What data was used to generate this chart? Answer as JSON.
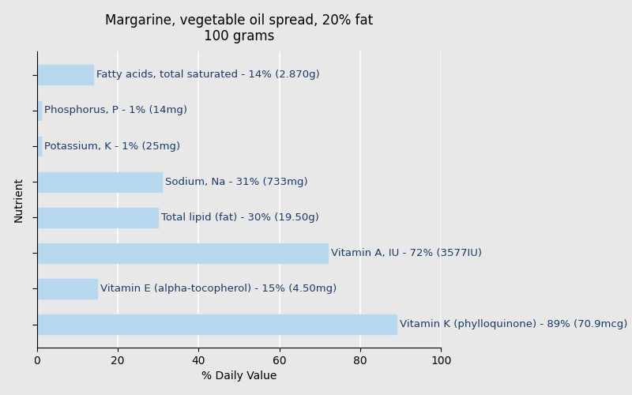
{
  "title": "Margarine, vegetable oil spread, 20% fat\n100 grams",
  "xlabel": "% Daily Value",
  "ylabel": "Nutrient",
  "background_color": "#e8e8e8",
  "bar_color": "#b8d8f0",
  "text_color": "#1a3a6b",
  "categories": [
    "Fatty acids, total saturated - 14% (2.870g)",
    "Phosphorus, P - 1% (14mg)",
    "Potassium, K - 1% (25mg)",
    "Sodium, Na - 31% (733mg)",
    "Total lipid (fat) - 30% (19.50g)",
    "Vitamin A, IU - 72% (3577IU)",
    "Vitamin E (alpha-tocopherol) - 15% (4.50mg)",
    "Vitamin K (phylloquinone) - 89% (70.9mcg)"
  ],
  "values": [
    14,
    1,
    1,
    31,
    30,
    72,
    15,
    89
  ],
  "xlim": [
    0,
    100
  ],
  "xticks": [
    0,
    20,
    40,
    60,
    80,
    100
  ],
  "grid_color": "#ffffff",
  "title_fontsize": 12,
  "label_fontsize": 9.5,
  "tick_fontsize": 10,
  "axis_label_fontsize": 10,
  "bar_height": 0.55
}
